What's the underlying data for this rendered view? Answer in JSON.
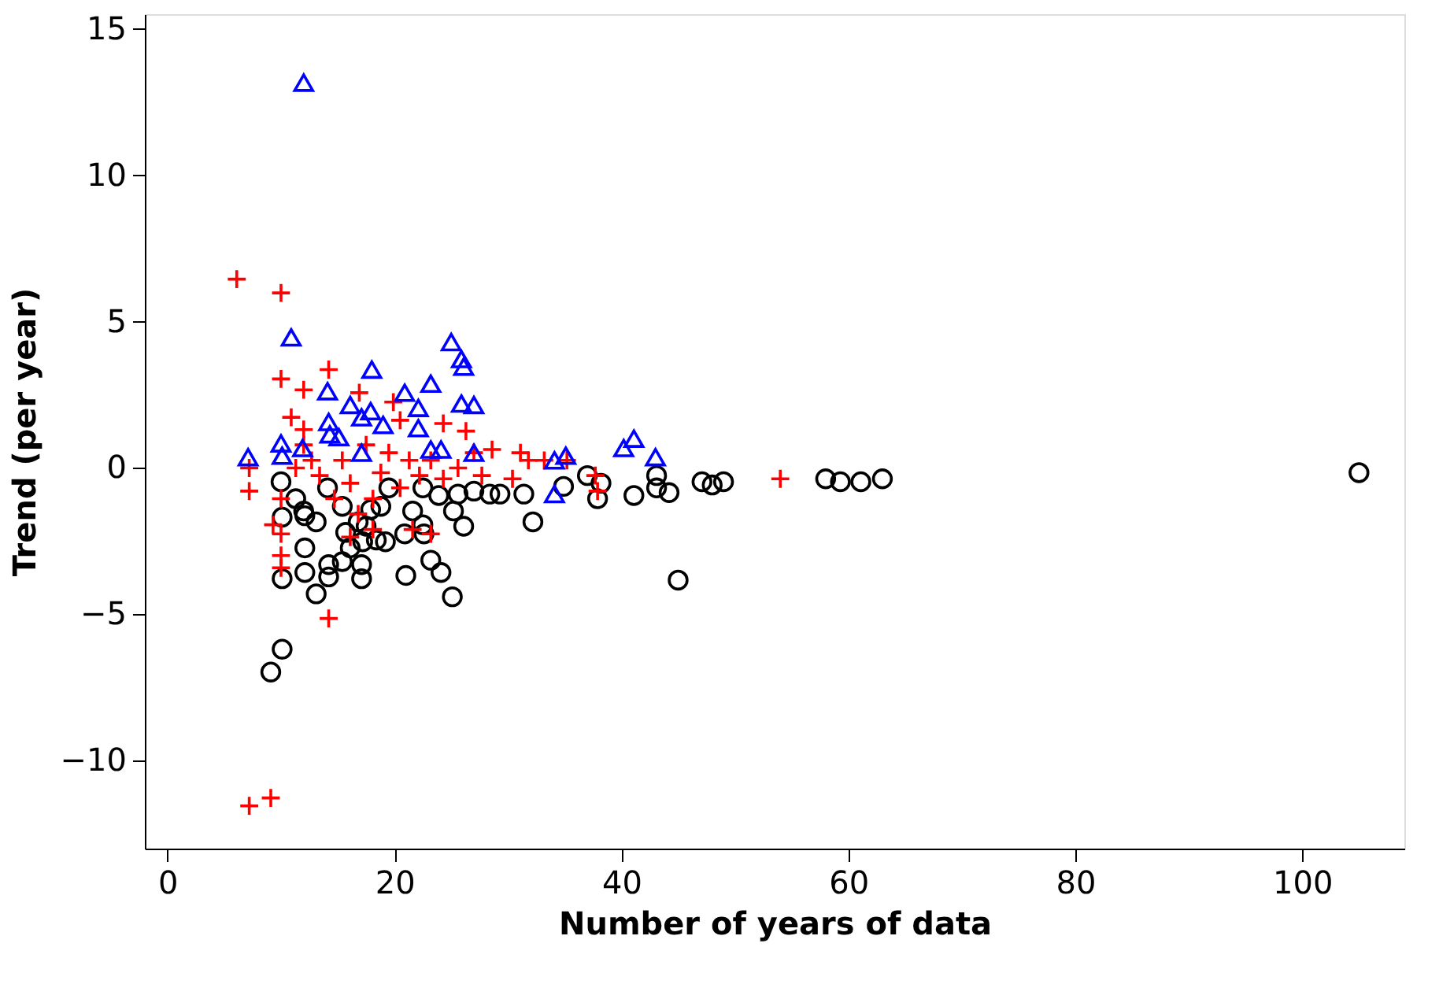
{
  "chart_data": {
    "type": "scatter",
    "xlabel": "Number of years of data",
    "ylabel": "Trend (per year)",
    "xlim": [
      -2,
      109
    ],
    "ylim": [
      -13,
      15.5
    ],
    "xticks": [
      0,
      20,
      40,
      60,
      80,
      100
    ],
    "yticks": [
      -10,
      -5,
      0,
      5,
      10,
      15
    ],
    "series": [
      {
        "color": "#000000",
        "marker": "circle",
        "x": [
          10.0,
          10.1,
          12.1,
          12.1,
          10.1,
          12.1,
          13.1,
          14.2,
          14.2,
          15.4,
          17.1,
          17.1,
          16.1,
          17.2,
          18.4,
          19.2,
          21.0,
          23.2,
          24.1,
          25.1,
          10.1,
          9.1,
          20.9,
          22.5,
          22.6,
          26.1,
          25.2,
          23.9,
          28.4,
          15.7,
          12.0,
          13.1,
          17.5,
          17.9,
          21.6,
          22.5,
          27.0,
          29.3,
          31.4,
          32.2,
          34.9,
          37.0,
          38.2,
          37.9,
          41.1,
          43.1,
          43.1,
          44.2,
          45.0,
          47.1,
          48.0,
          49.0,
          58.0,
          59.3,
          61.1,
          63.0,
          105.0,
          11.3,
          14.1,
          15.4,
          19.5,
          25.6,
          18.8,
          16.8
        ],
        "values": [
          -0.47,
          -1.68,
          -1.63,
          -2.73,
          -3.78,
          -3.57,
          -4.3,
          -3.3,
          -3.72,
          -3.2,
          -3.3,
          -3.78,
          -2.73,
          -2.52,
          -2.46,
          -2.52,
          -3.67,
          -3.15,
          -3.57,
          -4.4,
          -6.19,
          -6.97,
          -2.25,
          -1.94,
          -2.25,
          -1.99,
          -1.47,
          -0.94,
          -0.89,
          -2.2,
          -1.47,
          -1.84,
          -1.99,
          -1.42,
          -1.47,
          -0.68,
          -0.79,
          -0.89,
          -0.89,
          -1.84,
          -0.63,
          -0.26,
          -0.52,
          -1.05,
          -0.94,
          -0.26,
          -0.68,
          -0.84,
          -3.83,
          -0.47,
          -0.58,
          -0.47,
          -0.37,
          -0.47,
          -0.47,
          -0.37,
          -0.16,
          -1.05,
          -0.68,
          -1.31,
          -0.68,
          -0.89,
          -1.31,
          -1.84
        ]
      },
      {
        "color": "#ff0000",
        "marker": "cross",
        "x": [
          6.1,
          10.0,
          10.0,
          12.0,
          14.2,
          14.2,
          7.2,
          9.1,
          7.2,
          7.2,
          10.0,
          9.3,
          10.0,
          10.0,
          10.0,
          10.9,
          12.0,
          12.0,
          11.3,
          12.7,
          13.4,
          16.9,
          17.5,
          15.4,
          16.1,
          14.7,
          16.8,
          18.1,
          16.1,
          19.9,
          20.5,
          19.5,
          21.3,
          21.6,
          23.2,
          20.5,
          24.3,
          26.3,
          25.6,
          27.0,
          28.6,
          31.1,
          31.8,
          30.4,
          33.2,
          35.2,
          37.7,
          37.9,
          54.0,
          23.2,
          24.3,
          27.7,
          18.8,
          18.1,
          22.2
        ],
        "values": [
          6.45,
          5.98,
          3.04,
          2.67,
          3.36,
          -5.14,
          -11.54,
          -11.27,
          0.0,
          -0.79,
          -1.05,
          -1.94,
          -2.99,
          -3.41,
          -2.25,
          1.73,
          1.31,
          0.79,
          0.0,
          0.26,
          -0.26,
          2.57,
          0.79,
          0.26,
          -0.52,
          -1.05,
          -1.57,
          -2.1,
          -2.36,
          2.25,
          1.63,
          0.52,
          0.26,
          -2.1,
          -2.25,
          -0.68,
          1.52,
          1.26,
          0.0,
          0.52,
          0.63,
          0.52,
          0.26,
          -0.37,
          0.26,
          0.26,
          -0.26,
          -0.79,
          -0.37,
          0.26,
          -0.37,
          -0.26,
          -0.16,
          -1.05,
          -0.26
        ]
      },
      {
        "color": "#0000ff",
        "marker": "triangle",
        "x": [
          7.1,
          10.0,
          10.1,
          10.9,
          12.0,
          11.9,
          14.1,
          14.2,
          14.3,
          15.1,
          16.1,
          17.1,
          17.9,
          18.0,
          19.0,
          17.1,
          20.9,
          22.1,
          22.1,
          23.2,
          23.2,
          24.1,
          25.0,
          25.9,
          26.1,
          25.9,
          27.0,
          27.0,
          34.1,
          35.1,
          34.1,
          40.2,
          41.1,
          43.0
        ],
        "values": [
          0.37,
          0.84,
          0.42,
          4.46,
          13.16,
          0.68,
          2.62,
          1.57,
          1.15,
          1.05,
          2.15,
          1.73,
          1.94,
          3.36,
          1.47,
          0.52,
          2.57,
          2.05,
          1.36,
          2.88,
          0.63,
          0.63,
          4.3,
          3.72,
          3.46,
          2.2,
          2.15,
          0.52,
          0.26,
          0.42,
          -0.89,
          0.68,
          1.0,
          0.37
        ]
      }
    ]
  }
}
